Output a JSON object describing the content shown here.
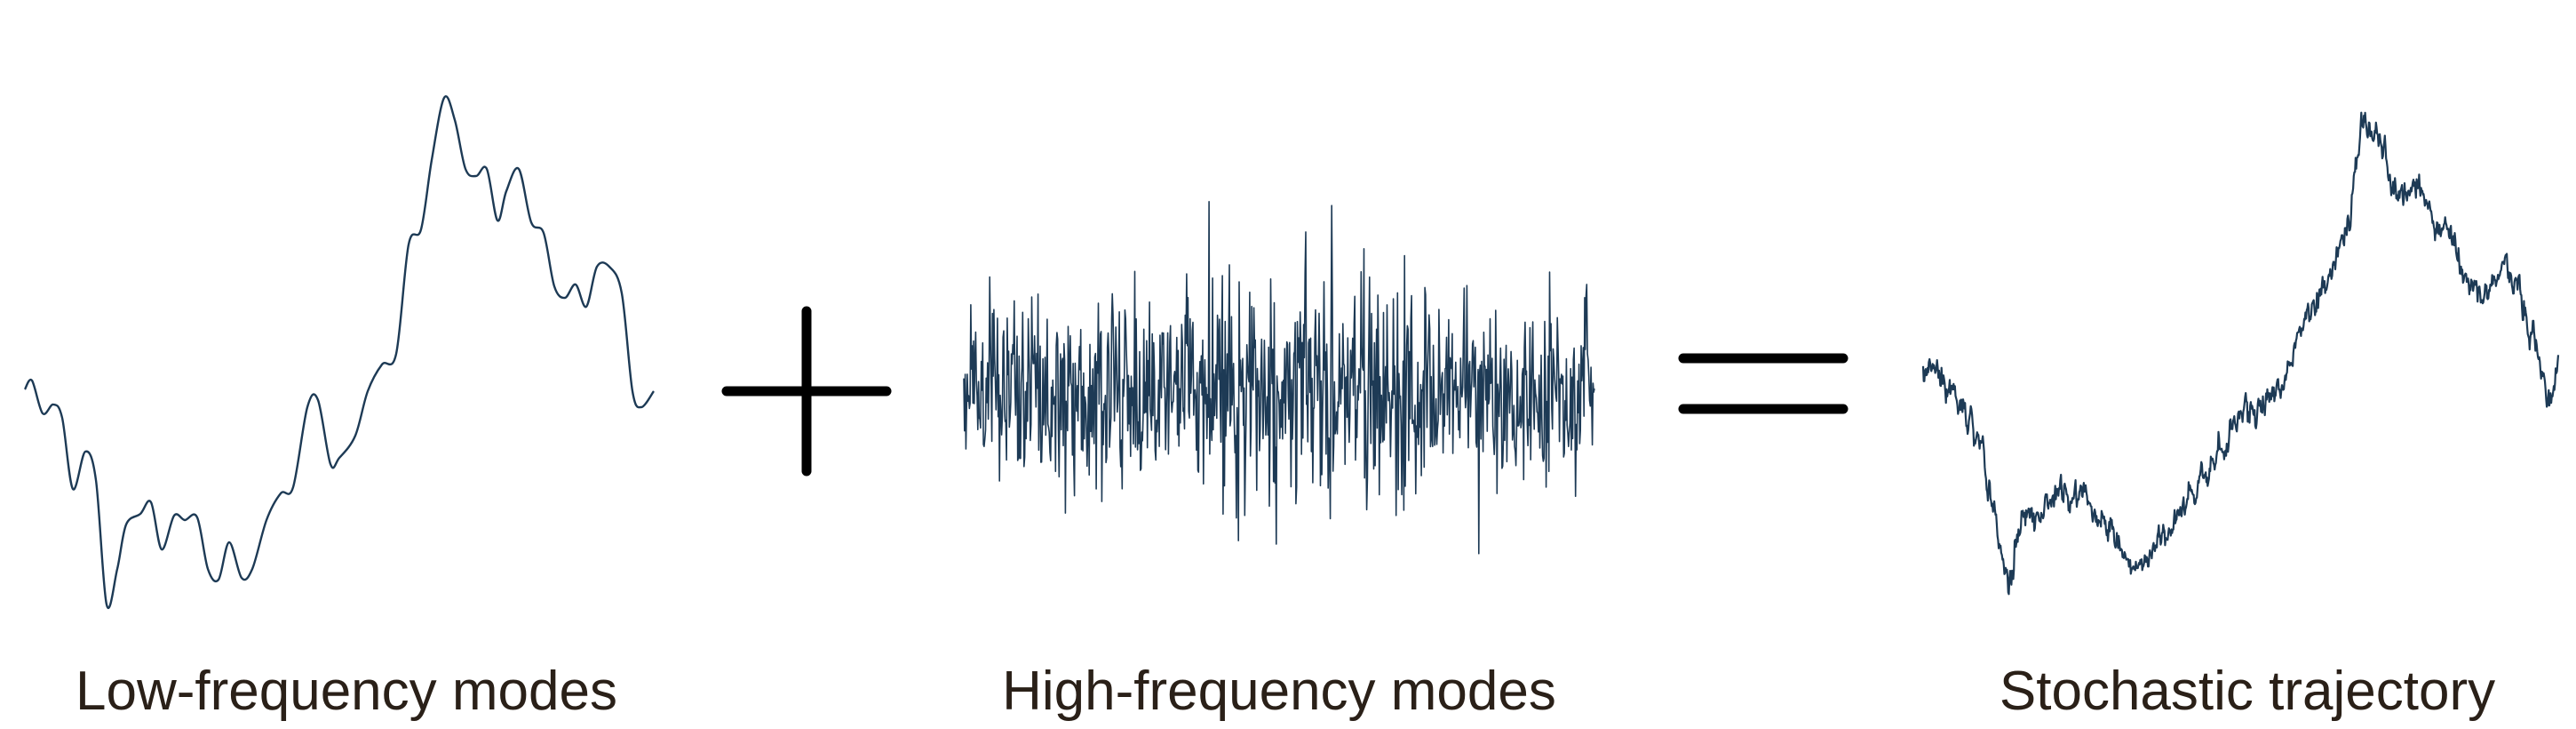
{
  "panels": [
    {
      "label": "Low-frequency modes"
    },
    {
      "label": "High-frequency modes"
    },
    {
      "label": "Stochastic trajectory"
    }
  ],
  "operators": [
    "plus",
    "equals"
  ],
  "colors": {
    "trace": "#1d3a55",
    "operator": "#000000",
    "label": "#2a2018"
  }
}
